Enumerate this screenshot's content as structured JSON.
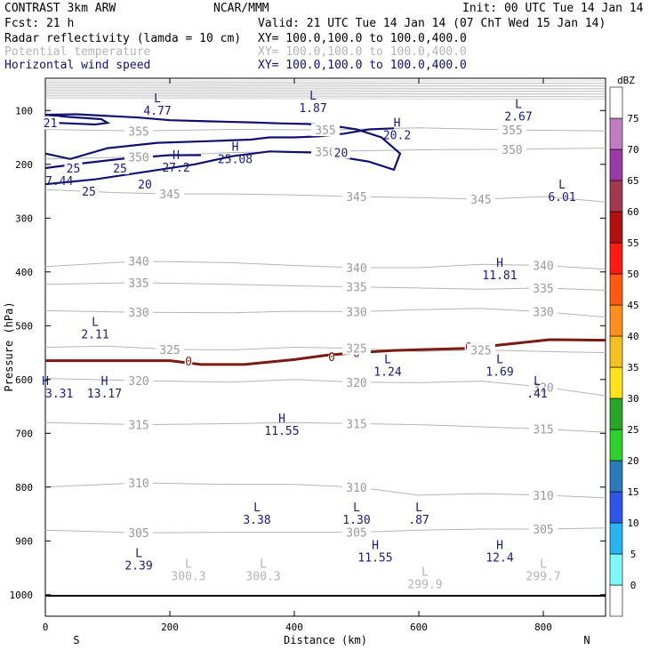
{
  "header": {
    "model": "CONTRAST  3km ARW",
    "org": "NCAR/MMM",
    "init": "Init: 00 UTC Tue 14 Jan 14",
    "fcst": "Fcst:   21 h",
    "valid": "Valid: 21 UTC Tue 14 Jan 14 (07 ChT Wed 15 Jan 14)",
    "fields": [
      {
        "label": "Radar reflectivity (lamda = 10 cm)",
        "xy": "XY= 100.0,100.0 to 100.0,400.0",
        "color": "#000000"
      },
      {
        "label": "Potential temperature",
        "xy": "XY= 100.0,100.0 to 100.0,400.0",
        "color": "#b4b4b4"
      },
      {
        "label": "Horizontal wind speed",
        "xy": "XY= 100.0,100.0 to 100.0,400.0",
        "color": "#101070"
      }
    ]
  },
  "chart_data": {
    "type": "cross-section contour",
    "title": "CONTRAST  3km ARW",
    "xlabel": "Distance (km)",
    "ylabel": "Pressure (hPa)",
    "xlim": [
      0,
      900
    ],
    "ylim": [
      1040,
      40
    ],
    "x_ticks": [
      0,
      200,
      400,
      600,
      800
    ],
    "y_ticks": [
      100,
      200,
      300,
      400,
      500,
      600,
      700,
      800,
      900,
      1000
    ],
    "x_end_labels": {
      "left": "S",
      "right": "N"
    },
    "colorbar": {
      "unit": "dBZ",
      "ticks": [
        0,
        5,
        10,
        15,
        20,
        25,
        30,
        35,
        40,
        45,
        50,
        55,
        60,
        65,
        70,
        75
      ],
      "colors": [
        "#ffffff",
        "#7ff7f7",
        "#27b4f0",
        "#2f55e6",
        "#2b7bb8",
        "#2fcf2f",
        "#2aa52a",
        "#ffe11e",
        "#f5c023",
        "#ff9020",
        "#ff5a12",
        "#ff1a12",
        "#b01010",
        "#a03850",
        "#9a3aa6",
        "#c07ec0",
        "#ffffff"
      ]
    },
    "theta_contours": [
      {
        "value": 355,
        "label": "355",
        "points": [
          [
            0,
            135
          ],
          [
            150,
            138
          ],
          [
            300,
            135
          ],
          [
            450,
            136
          ],
          [
            600,
            132
          ],
          [
            750,
            136
          ],
          [
            900,
            138
          ]
        ]
      },
      {
        "value": 350,
        "label": "350",
        "points": [
          [
            0,
            190
          ],
          [
            150,
            186
          ],
          [
            300,
            178
          ],
          [
            450,
            176
          ],
          [
            600,
            173
          ],
          [
            750,
            172
          ],
          [
            900,
            170
          ]
        ]
      },
      {
        "value": 345,
        "label": "345",
        "points": [
          [
            0,
            247
          ],
          [
            100,
            252
          ],
          [
            200,
            255
          ],
          [
            300,
            255
          ],
          [
            400,
            257
          ],
          [
            500,
            260
          ],
          [
            600,
            262
          ],
          [
            700,
            265
          ],
          [
            800,
            260
          ],
          [
            900,
            270
          ]
        ]
      },
      {
        "value": 340,
        "label": "340",
        "points": [
          [
            0,
            390
          ],
          [
            150,
            380
          ],
          [
            300,
            383
          ],
          [
            400,
            388
          ],
          [
            500,
            392
          ],
          [
            600,
            392
          ],
          [
            700,
            386
          ],
          [
            800,
            388
          ],
          [
            900,
            395
          ]
        ]
      },
      {
        "value": 335,
        "label": "335",
        "points": [
          [
            0,
            423
          ],
          [
            150,
            420
          ],
          [
            300,
            423
          ],
          [
            400,
            426
          ],
          [
            500,
            428
          ],
          [
            600,
            430
          ],
          [
            700,
            432
          ],
          [
            800,
            430
          ],
          [
            900,
            434
          ]
        ]
      },
      {
        "value": 330,
        "label": "330",
        "points": [
          [
            0,
            472
          ],
          [
            150,
            475
          ],
          [
            300,
            476
          ],
          [
            400,
            473
          ],
          [
            500,
            474
          ],
          [
            600,
            470
          ],
          [
            700,
            468
          ],
          [
            800,
            474
          ],
          [
            900,
            484
          ]
        ]
      },
      {
        "value": 325,
        "label": "325",
        "points": [
          [
            0,
            540
          ],
          [
            100,
            538
          ],
          [
            200,
            544
          ],
          [
            300,
            545
          ],
          [
            400,
            540
          ],
          [
            500,
            542
          ],
          [
            600,
            548
          ],
          [
            700,
            545
          ],
          [
            800,
            548
          ],
          [
            900,
            550
          ]
        ]
      },
      {
        "value": 320,
        "label": "320",
        "points": [
          [
            0,
            598
          ],
          [
            150,
            602
          ],
          [
            300,
            605
          ],
          [
            400,
            600
          ],
          [
            500,
            605
          ],
          [
            600,
            606
          ],
          [
            700,
            603
          ],
          [
            800,
            614
          ],
          [
            900,
            630
          ]
        ]
      },
      {
        "value": 315,
        "label": "315",
        "points": [
          [
            0,
            680
          ],
          [
            150,
            684
          ],
          [
            300,
            682
          ],
          [
            400,
            680
          ],
          [
            500,
            682
          ],
          [
            600,
            684
          ],
          [
            700,
            688
          ],
          [
            800,
            692
          ],
          [
            900,
            698
          ]
        ]
      },
      {
        "value": 310,
        "label": "310",
        "points": [
          [
            0,
            800
          ],
          [
            150,
            792
          ],
          [
            300,
            795
          ],
          [
            400,
            795
          ],
          [
            500,
            800
          ],
          [
            600,
            815
          ],
          [
            700,
            812
          ],
          [
            800,
            815
          ],
          [
            900,
            820
          ]
        ]
      },
      {
        "value": 305,
        "label": "305",
        "points": [
          [
            0,
            880
          ],
          [
            150,
            885
          ],
          [
            300,
            884
          ],
          [
            400,
            884
          ],
          [
            500,
            884
          ],
          [
            600,
            880
          ],
          [
            700,
            878
          ],
          [
            800,
            878
          ],
          [
            900,
            876
          ]
        ]
      }
    ],
    "wind_contours": [
      {
        "value": 20,
        "label": "20",
        "points": [
          [
            0,
            180
          ],
          [
            40,
            190
          ],
          [
            100,
            170
          ],
          [
            180,
            160
          ],
          [
            260,
            157
          ],
          [
            330,
            154
          ],
          [
            360,
            150
          ],
          [
            400,
            150
          ],
          [
            440,
            148
          ],
          [
            480,
            143
          ],
          [
            520,
            135
          ],
          [
            560,
            133
          ]
        ]
      },
      {
        "value": 25,
        "label": "25",
        "points": [
          [
            0,
            207
          ],
          [
            60,
            198
          ],
          [
            120,
            190
          ],
          [
            200,
            183
          ],
          [
            250,
            183
          ]
        ]
      },
      {
        "value": 20,
        "label": "20",
        "points": [
          [
            0,
            237
          ],
          [
            80,
            228
          ],
          [
            160,
            214
          ],
          [
            240,
            200
          ],
          [
            300,
            185
          ],
          [
            360,
            176
          ],
          [
            430,
            178
          ],
          [
            520,
            195
          ],
          [
            560,
            210
          ],
          [
            570,
            180
          ],
          [
            540,
            150
          ],
          [
            500,
            135
          ],
          [
            460,
            128
          ],
          [
            420,
            125
          ],
          [
            380,
            124
          ],
          [
            330,
            122
          ],
          [
            260,
            120
          ],
          [
            200,
            118
          ],
          [
            150,
            113
          ],
          [
            100,
            110
          ],
          [
            50,
            107
          ],
          [
            0,
            108
          ]
        ]
      },
      {
        "value": 21,
        "label": "21",
        "points": [
          [
            0,
            108
          ],
          [
            40,
            112
          ],
          [
            90,
            116
          ],
          [
            100,
            123
          ],
          [
            80,
            126
          ],
          [
            40,
            124
          ],
          [
            0,
            122
          ]
        ]
      }
    ],
    "freezing_level": {
      "value": 0,
      "label": "0",
      "points": [
        [
          0,
          565
        ],
        [
          100,
          565
        ],
        [
          200,
          565
        ],
        [
          250,
          572
        ],
        [
          320,
          572
        ],
        [
          400,
          563
        ],
        [
          450,
          555
        ],
        [
          500,
          550
        ],
        [
          560,
          546
        ],
        [
          620,
          544
        ],
        [
          680,
          542
        ],
        [
          760,
          532
        ],
        [
          810,
          526
        ],
        [
          900,
          527
        ]
      ]
    },
    "wind_labels": [
      {
        "text": "25",
        "x": 45,
        "p": 207
      },
      {
        "text": "25",
        "x": 120,
        "p": 207
      },
      {
        "text": "20",
        "x": 160,
        "p": 237
      },
      {
        "text": "20",
        "x": 475,
        "p": 178
      },
      {
        "text": "25",
        "x": 70,
        "p": 250
      },
      {
        "text": "21",
        "x": 8,
        "p": 123
      }
    ],
    "extrema": [
      {
        "type": "L",
        "value": "4.77",
        "x": 180,
        "p": 85,
        "series": "wind"
      },
      {
        "type": "L",
        "value": "1.87",
        "x": 430,
        "p": 80,
        "series": "wind"
      },
      {
        "type": "L",
        "value": "2.67",
        "x": 760,
        "p": 95,
        "series": "wind"
      },
      {
        "type": "H",
        "value": "20.2",
        "x": 565,
        "p": 130,
        "series": "wind"
      },
      {
        "type": "H",
        "value": "27.2",
        "x": 210,
        "p": 190,
        "series": "wind"
      },
      {
        "type": "H",
        "value": "25.08",
        "x": 305,
        "p": 175,
        "series": "wind"
      },
      {
        "type": "",
        "value": "7.44",
        "x": 0,
        "p": 215,
        "series": "wind"
      },
      {
        "type": "L",
        "value": "6.01",
        "x": 830,
        "p": 245,
        "series": "wind"
      },
      {
        "type": "H",
        "value": "11.81",
        "x": 730,
        "p": 390,
        "series": "wind"
      },
      {
        "type": "L",
        "value": "2.11",
        "x": 80,
        "p": 500,
        "series": "wind"
      },
      {
        "type": "L",
        "value": "1.24",
        "x": 550,
        "p": 570,
        "series": "wind"
      },
      {
        "type": "L",
        "value": "1.69",
        "x": 730,
        "p": 570,
        "series": "wind"
      },
      {
        "type": "L",
        "value": ".41",
        "x": 790,
        "p": 610,
        "series": "wind"
      },
      {
        "type": "H",
        "value": "3.31",
        "x": 0,
        "p": 610,
        "series": "wind"
      },
      {
        "type": "H",
        "value": "13.17",
        "x": 95,
        "p": 610,
        "series": "wind"
      },
      {
        "type": "H",
        "value": "11.55",
        "x": 380,
        "p": 680,
        "series": "wind"
      },
      {
        "type": "L",
        "value": "3.38",
        "x": 340,
        "p": 845,
        "series": "wind"
      },
      {
        "type": "L",
        "value": "1.30",
        "x": 500,
        "p": 845,
        "series": "wind"
      },
      {
        "type": "L",
        "value": ".87",
        "x": 600,
        "p": 845,
        "series": "wind"
      },
      {
        "type": "L",
        "value": "2.39",
        "x": 150,
        "p": 930,
        "series": "wind"
      },
      {
        "type": "H",
        "value": "11.55",
        "x": 530,
        "p": 915,
        "series": "wind"
      },
      {
        "type": "H",
        "value": "12.4",
        "x": 730,
        "p": 915,
        "series": "wind"
      },
      {
        "type": "L",
        "value": "300.3",
        "x": 230,
        "p": 950,
        "series": "theta"
      },
      {
        "type": "L",
        "value": "300.3",
        "x": 350,
        "p": 950,
        "series": "theta"
      },
      {
        "type": "L",
        "value": "299.9",
        "x": 610,
        "p": 965,
        "series": "theta"
      },
      {
        "type": "L",
        "value": "299.7",
        "x": 800,
        "p": 950,
        "series": "theta"
      }
    ]
  }
}
